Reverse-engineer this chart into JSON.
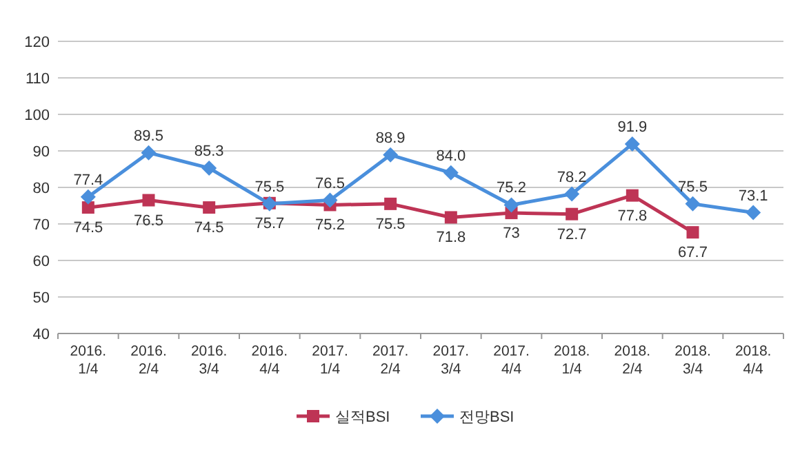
{
  "chart_data": {
    "type": "line",
    "categories": [
      "2016. 1/4",
      "2016. 2/4",
      "2016. 3/4",
      "2016. 4/4",
      "2017. 1/4",
      "2017. 2/4",
      "2017. 3/4",
      "2017. 4/4",
      "2018. 1/4",
      "2018. 2/4",
      "2018. 3/4",
      "2018. 4/4"
    ],
    "series": [
      {
        "name": "실적BSI",
        "color": "#be3455",
        "marker": "square",
        "values": [
          74.5,
          76.5,
          74.5,
          75.7,
          75.2,
          75.5,
          71.8,
          73,
          72.7,
          77.8,
          67.7,
          null
        ],
        "value_labels": [
          "74.5",
          "76.5",
          "74.5",
          "75.7",
          "75.2",
          "75.5",
          "71.8",
          "73",
          "72.7",
          "77.8",
          "67.7",
          null
        ]
      },
      {
        "name": "전망BSI",
        "color": "#4a8fdc",
        "marker": "diamond",
        "values": [
          77.4,
          89.5,
          85.3,
          75.5,
          76.5,
          88.9,
          84.0,
          75.2,
          78.2,
          91.9,
          75.5,
          73.1
        ],
        "value_labels": [
          "77.4",
          "89.5",
          "85.3",
          "75.5",
          "76.5",
          "88.9",
          "84.0",
          "75.2",
          "78.2",
          "91.9",
          "75.5",
          "73.1"
        ]
      }
    ],
    "ylim": [
      40,
      120
    ],
    "yticks": [
      40,
      50,
      60,
      70,
      80,
      90,
      100,
      110,
      120
    ],
    "grid": "y",
    "legend": "bottom",
    "line_style": "solid"
  }
}
